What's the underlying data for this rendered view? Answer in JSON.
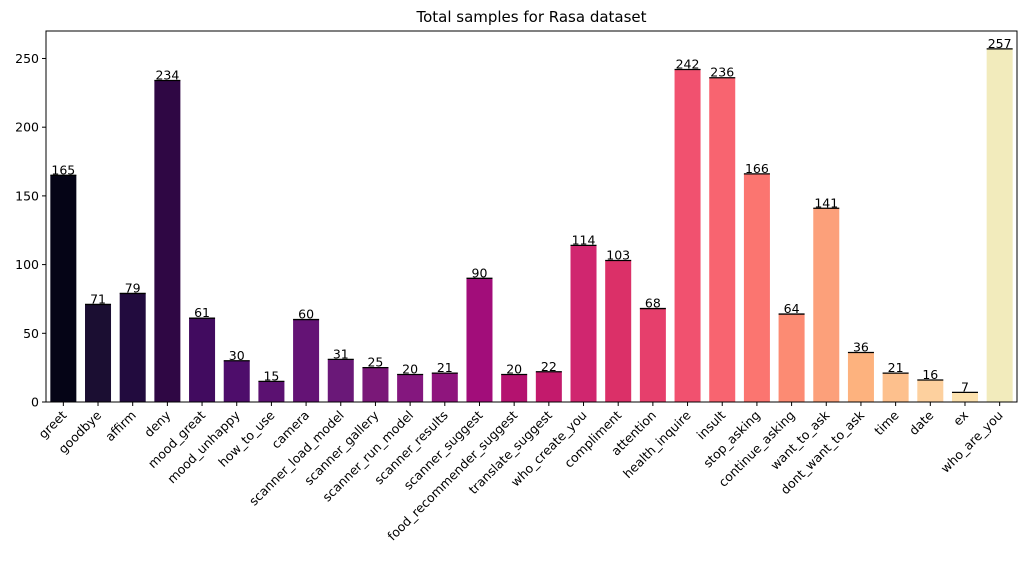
{
  "chart_data": {
    "type": "bar",
    "title": "Total samples for Rasa dataset",
    "xlabel": "",
    "ylabel": "",
    "ylim": [
      0,
      270
    ],
    "yticks": [
      0,
      50,
      100,
      150,
      200,
      250
    ],
    "grid": false,
    "legend": "none",
    "categories": [
      "greet",
      "goodbye",
      "affirm",
      "deny",
      "mood_great",
      "mood_unhappy",
      "how_to_use",
      "camera",
      "scanner_load_model",
      "scanner_gallery",
      "scanner_run_model",
      "scanner_results",
      "scanner_suggest",
      "food_recommender_suggest",
      "translate_suggest",
      "who_create_you",
      "compliment",
      "attention",
      "health_inquire",
      "insult",
      "stop_asking",
      "continue_asking",
      "want_to_ask",
      "dont_want_to_ask",
      "time",
      "date",
      "ex",
      "who_are_you"
    ],
    "values": [
      165,
      71,
      79,
      234,
      61,
      30,
      15,
      60,
      31,
      25,
      20,
      21,
      90,
      20,
      22,
      114,
      103,
      68,
      242,
      236,
      166,
      64,
      141,
      36,
      21,
      16,
      7,
      257
    ],
    "colors": [
      "#050416",
      "#1b0e32",
      "#220b3e",
      "#2f0744",
      "#410b5f",
      "#4e0d6b",
      "#5b1171",
      "#641375",
      "#6a1878",
      "#7a1878",
      "#84177e",
      "#8f157d",
      "#a20d7a",
      "#b4126f",
      "#c31a6c",
      "#d0266f",
      "#db3068",
      "#e63f6c",
      "#f1516f",
      "#f86470",
      "#fb7570",
      "#fc8b73",
      "#fca07a",
      "#fdb27e",
      "#fdc08d",
      "#fdd09e",
      "#fce1ae",
      "#f2ebbc"
    ]
  }
}
